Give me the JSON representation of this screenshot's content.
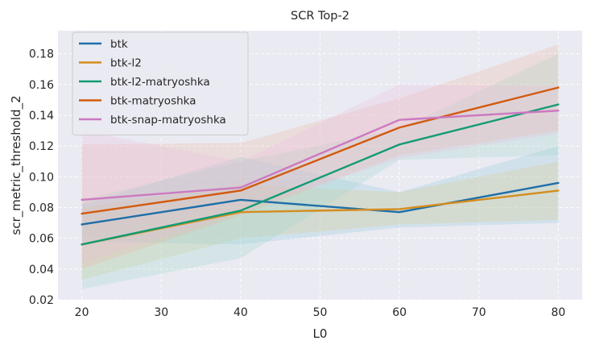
{
  "chart_data": {
    "type": "line",
    "title": "SCR Top-2",
    "xlabel": "L0",
    "ylabel": "scr_metric_threshold_2",
    "x": [
      20,
      40,
      60,
      80
    ],
    "xticks": [
      20,
      30,
      40,
      50,
      60,
      70,
      80
    ],
    "xlim": [
      17,
      83
    ],
    "yticks": [
      0.02,
      0.04,
      0.06,
      0.08,
      0.1,
      0.12,
      0.14,
      0.16,
      0.18
    ],
    "ylim": [
      0.02,
      0.195
    ],
    "legend_position": "top-left",
    "grid": true,
    "series": [
      {
        "name": "btk",
        "color": "#1f6fa8",
        "band_color": "#8fc9e0",
        "values": [
          0.069,
          0.085,
          0.077,
          0.096
        ],
        "lower": [
          0.058,
          0.056,
          0.067,
          0.07
        ],
        "upper": [
          0.082,
          0.113,
          0.09,
          0.12
        ]
      },
      {
        "name": "btk-l2",
        "color": "#d48d1f",
        "band_color": "#d8c98a",
        "values": [
          0.056,
          0.077,
          0.079,
          0.091
        ],
        "lower": [
          0.033,
          0.06,
          0.069,
          0.072
        ],
        "upper": [
          0.08,
          0.095,
          0.09,
          0.11
        ]
      },
      {
        "name": "btk-l2-matryoshka",
        "color": "#129b73",
        "band_color": "#9fd8cc",
        "values": [
          0.056,
          0.078,
          0.121,
          0.147
        ],
        "lower": [
          0.027,
          0.047,
          0.111,
          0.114
        ],
        "upper": [
          0.085,
          0.11,
          0.131,
          0.18
        ]
      },
      {
        "name": "btk-matryoshka",
        "color": "#d25a0e",
        "band_color": "#e8b7a3",
        "values": [
          0.076,
          0.091,
          0.132,
          0.158
        ],
        "lower": [
          0.04,
          0.075,
          0.114,
          0.13
        ],
        "upper": [
          0.121,
          0.122,
          0.151,
          0.186
        ]
      },
      {
        "name": "btk-snap-matryoshka",
        "color": "#cc79c0",
        "band_color": "#e8bde0",
        "values": [
          0.085,
          0.093,
          0.137,
          0.143
        ],
        "lower": [
          0.044,
          0.077,
          0.112,
          0.128
        ],
        "upper": [
          0.13,
          0.11,
          0.16,
          0.159
        ]
      }
    ]
  }
}
